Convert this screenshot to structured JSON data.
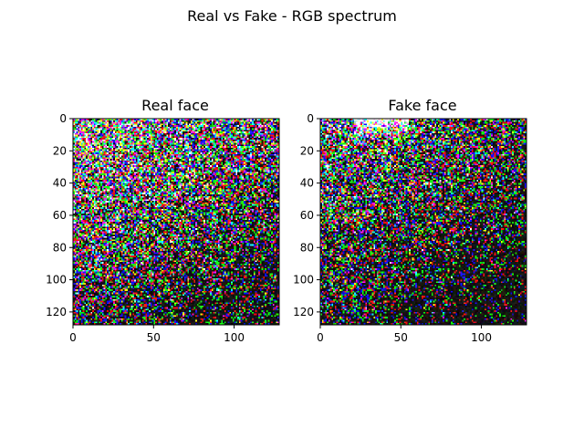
{
  "figure": {
    "suptitle": "Real vs Fake - RGB spectrum"
  },
  "chart_data": [
    {
      "type": "heatmap",
      "title": "Real face",
      "image_size": [
        128,
        128
      ],
      "color_mode": "RGB",
      "xlim": [
        0,
        128
      ],
      "ylim": [
        128,
        0
      ],
      "x_ticks": [
        0,
        50,
        100
      ],
      "y_ticks": [
        0,
        20,
        40,
        60,
        80,
        100,
        120
      ],
      "grid": false,
      "texture": {
        "bright_corner": "top-left",
        "bright_fraction_top": 0.55,
        "bright_fraction_bottom": 0.12,
        "diagonal_stripes": true
      }
    },
    {
      "type": "heatmap",
      "title": "Fake face",
      "image_size": [
        128,
        128
      ],
      "color_mode": "RGB",
      "xlim": [
        0,
        128
      ],
      "ylim": [
        128,
        0
      ],
      "x_ticks": [
        0,
        50,
        100
      ],
      "y_ticks": [
        0,
        20,
        40,
        60,
        80,
        100,
        120
      ],
      "grid": false,
      "texture": {
        "bright_corner": "top-left",
        "bright_fraction_top": 0.45,
        "bright_fraction_bottom": 0.06,
        "diagonal_stripes": false
      }
    }
  ]
}
